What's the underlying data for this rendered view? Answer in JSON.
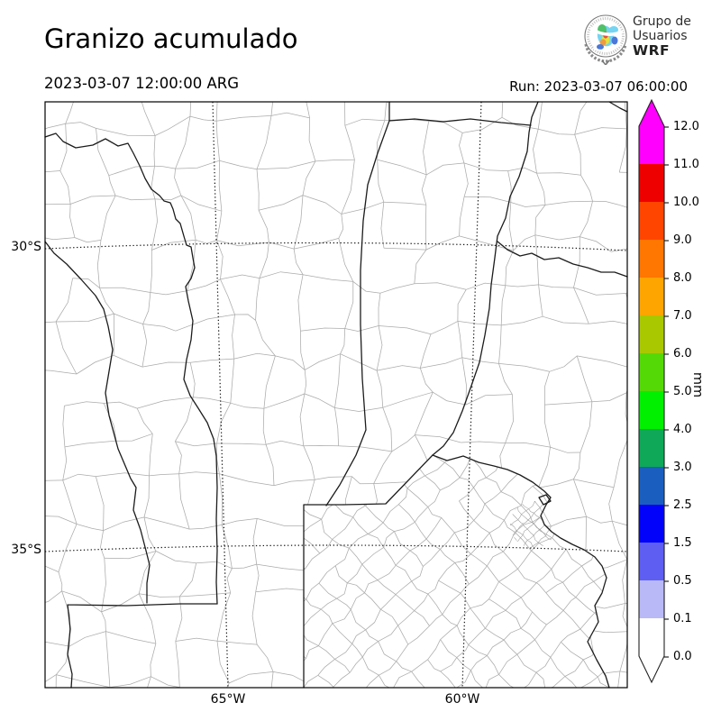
{
  "header": {
    "title": "Granizo acumulado",
    "valid_time": "2023-03-07 12:00:00 ARG",
    "run_label": "Run: 2023-03-07 06:00:00",
    "logo": {
      "line1": "Grupo de",
      "line2": "Usuarios",
      "line3": "WRF"
    }
  },
  "map": {
    "y_ticks": [
      "30°S",
      "35°S"
    ],
    "x_ticks": [
      "65°W",
      "60°W"
    ]
  },
  "colorbar": {
    "unit": "mm",
    "ticks": [
      "12.0",
      "11.0",
      "10.0",
      "9.0",
      "8.0",
      "7.0",
      "6.0",
      "5.0",
      "4.0",
      "3.0",
      "2.5",
      "1.5",
      "0.5",
      "0.1",
      "0.0"
    ],
    "segments": [
      "#ff00ff",
      "#ee0000",
      "#ff4500",
      "#ff7600",
      "#ffa500",
      "#aac800",
      "#54d906",
      "#00f000",
      "#0fa858",
      "#1a5fc0",
      "#0202fa",
      "#5e5ef2",
      "#b9b9f7",
      "#ffffff"
    ],
    "extend_over_color": "#ff00ff",
    "extend_under_color": "#ffffff",
    "outline_color": "#222222"
  },
  "chart_data": {
    "type": "map",
    "title": "Granizo acumulado",
    "valid_time": "2023-03-07 12:00:00 ARG",
    "model_run": "2023-03-07 06:00:00",
    "units": "mm",
    "levels": [
      0.0,
      0.1,
      0.5,
      1.5,
      2.5,
      3.0,
      4.0,
      5.0,
      6.0,
      7.0,
      8.0,
      9.0,
      10.0,
      11.0,
      12.0
    ],
    "level_colors": [
      "#ffffff",
      "#b9b9f7",
      "#5e5ef2",
      "#0202fa",
      "#1a5fc0",
      "#0fa858",
      "#00f000",
      "#54d906",
      "#aac800",
      "#ffa500",
      "#ff7600",
      "#ff4500",
      "#ee0000",
      "#ff00ff"
    ],
    "lat_gridlines": [
      "30°S",
      "35°S"
    ],
    "lon_gridlines": [
      "65°W",
      "60°W"
    ],
    "max_value_displayed": 0.0
  }
}
